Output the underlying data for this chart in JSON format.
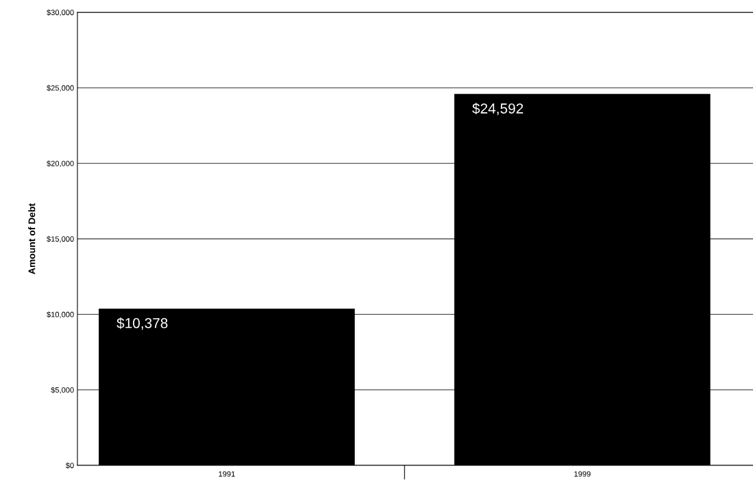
{
  "chart_data": {
    "type": "bar",
    "ylabel": "Amount of Debt",
    "categories": [
      "1991",
      "1999"
    ],
    "values": [
      10378,
      24592
    ],
    "value_labels": [
      "$10,378",
      "$24,592"
    ],
    "color": "#000000",
    "ylim": [
      0,
      30000
    ],
    "yticks": [
      {
        "value": 0,
        "label": "$0"
      },
      {
        "value": 5000,
        "label": "$5,000"
      },
      {
        "value": 10000,
        "label": "$10,000"
      },
      {
        "value": 15000,
        "label": "$15,000"
      },
      {
        "value": 20000,
        "label": "$20,000"
      },
      {
        "value": 25000,
        "label": "$25,000"
      },
      {
        "value": 30000,
        "label": "$30,000"
      }
    ],
    "grid": "y"
  }
}
